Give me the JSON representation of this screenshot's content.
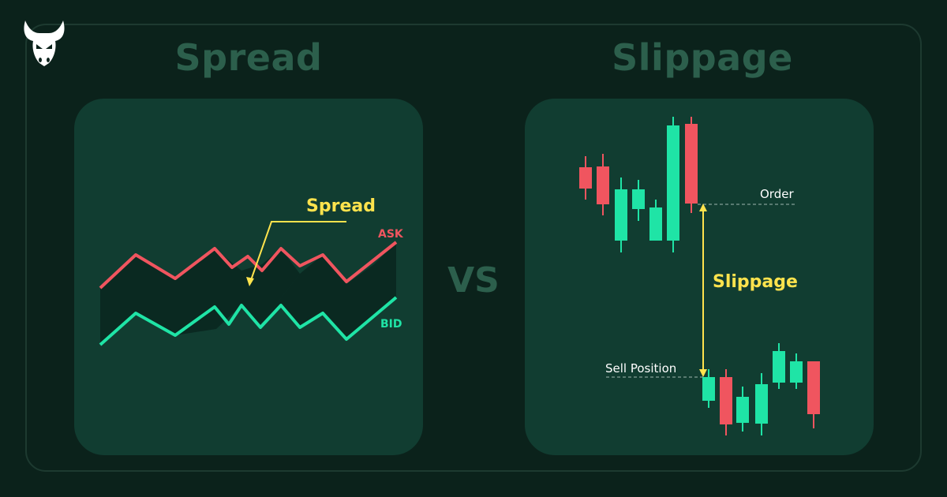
{
  "headings": {
    "left": "Spread",
    "right": "Slippage"
  },
  "vs_label": "VS",
  "spread_panel": {
    "annotation": "Spread",
    "ask_label": "ASK",
    "bid_label": "BID"
  },
  "slippage_panel": {
    "order_label": "Order",
    "slippage_label": "Slippage",
    "sell_label": "Sell Position"
  },
  "colors": {
    "background": "#0b221b",
    "panel": "#113d31",
    "heading": "#2c5f4c",
    "ask_line": "#f0555f",
    "bid_line": "#1fe4a6",
    "annotation": "#ffe34d",
    "label_white": "#ffffff"
  },
  "icons": [
    "bull-logo-icon"
  ]
}
